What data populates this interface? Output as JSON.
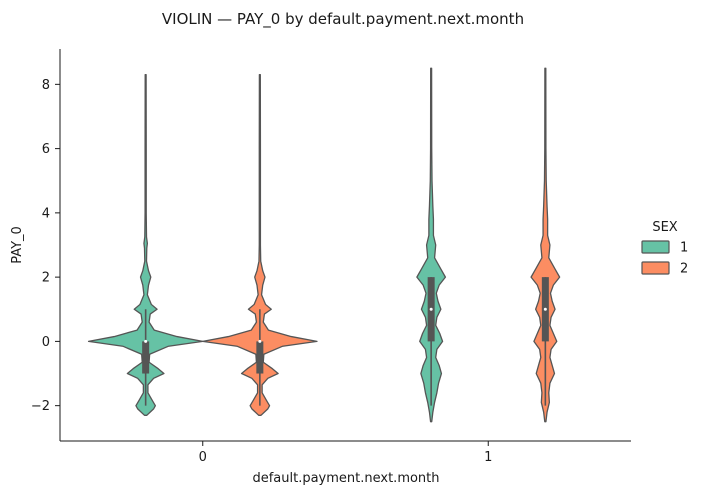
{
  "chart_data": {
    "type": "violin",
    "title": "VIOLIN — PAY_0 by default.payment.next.month",
    "xlabel": "default.payment.next.month",
    "ylabel": "PAY_0",
    "categories": [
      "0",
      "1"
    ],
    "ylim": [
      -3.1,
      9.1
    ],
    "yticks": [
      -2,
      0,
      2,
      4,
      6,
      8
    ],
    "ytick_labels": [
      "−2",
      "0",
      "2",
      "4",
      "6",
      "8"
    ],
    "grid": false,
    "legend": {
      "title": "SEX",
      "placement": "right",
      "entries": [
        {
          "label": "1",
          "color": "#66c2a5"
        },
        {
          "label": "2",
          "color": "#fc8d62"
        }
      ]
    },
    "series": [
      {
        "name": "1",
        "color": "#66c2a5",
        "violins": [
          {
            "category": "0",
            "ymin": -2.3,
            "ymax": 8.3,
            "q1": -1,
            "median": 0,
            "q3": 0,
            "whisker_low": -2,
            "whisker_high": 1,
            "density": [
              [
                -2.3,
                0.02
              ],
              [
                -2.1,
                0.14
              ],
              [
                -2.0,
                0.17
              ],
              [
                -1.85,
                0.12
              ],
              [
                -1.6,
                0.04
              ],
              [
                -1.35,
                0.04
              ],
              [
                -1.15,
                0.14
              ],
              [
                -1.0,
                0.32
              ],
              [
                -0.85,
                0.22
              ],
              [
                -0.65,
                0.06
              ],
              [
                -0.4,
                0.07
              ],
              [
                -0.15,
                0.4
              ],
              [
                0,
                1.0
              ],
              [
                0.15,
                0.55
              ],
              [
                0.35,
                0.15
              ],
              [
                0.6,
                0.06
              ],
              [
                0.85,
                0.08
              ],
              [
                1.0,
                0.2
              ],
              [
                1.15,
                0.1
              ],
              [
                1.45,
                0.03
              ],
              [
                1.75,
                0.05
              ],
              [
                2.0,
                0.09
              ],
              [
                2.2,
                0.05
              ],
              [
                2.5,
                0.015
              ],
              [
                2.9,
                0.02
              ],
              [
                3.05,
                0.03
              ],
              [
                3.25,
                0.015
              ],
              [
                4,
                0.01
              ],
              [
                6,
                0.01
              ],
              [
                8.3,
                0.008
              ]
            ]
          },
          {
            "category": "1",
            "ymin": -2.5,
            "ymax": 8.5,
            "q1": 0,
            "median": 1,
            "q3": 2,
            "whisker_low": -2,
            "whisker_high": 2,
            "density": [
              [
                -2.5,
                0.01
              ],
              [
                -2.2,
                0.03
              ],
              [
                -1.9,
                0.06
              ],
              [
                -1.6,
                0.1
              ],
              [
                -1.3,
                0.13
              ],
              [
                -1.0,
                0.18
              ],
              [
                -0.75,
                0.14
              ],
              [
                -0.5,
                0.08
              ],
              [
                -0.25,
                0.1
              ],
              [
                0,
                0.2
              ],
              [
                0.25,
                0.15
              ],
              [
                0.5,
                0.08
              ],
              [
                0.75,
                0.1
              ],
              [
                1.0,
                0.17
              ],
              [
                1.25,
                0.12
              ],
              [
                1.5,
                0.09
              ],
              [
                1.75,
                0.14
              ],
              [
                2.0,
                0.25
              ],
              [
                2.25,
                0.17
              ],
              [
                2.6,
                0.06
              ],
              [
                3.0,
                0.08
              ],
              [
                3.3,
                0.04
              ],
              [
                3.8,
                0.04
              ],
              [
                4.2,
                0.03
              ],
              [
                5,
                0.015
              ],
              [
                6,
                0.01
              ],
              [
                8.5,
                0.008
              ]
            ]
          }
        ]
      },
      {
        "name": "2",
        "color": "#fc8d62",
        "violins": [
          {
            "category": "0",
            "ymin": -2.3,
            "ymax": 8.3,
            "q1": -1,
            "median": 0,
            "q3": 0,
            "whisker_low": -2,
            "whisker_high": 1,
            "density": [
              [
                -2.3,
                0.02
              ],
              [
                -2.1,
                0.14
              ],
              [
                -2.0,
                0.17
              ],
              [
                -1.85,
                0.12
              ],
              [
                -1.6,
                0.04
              ],
              [
                -1.35,
                0.04
              ],
              [
                -1.15,
                0.14
              ],
              [
                -1.0,
                0.32
              ],
              [
                -0.85,
                0.22
              ],
              [
                -0.65,
                0.06
              ],
              [
                -0.4,
                0.07
              ],
              [
                -0.15,
                0.4
              ],
              [
                0,
                1.0
              ],
              [
                0.15,
                0.55
              ],
              [
                0.35,
                0.15
              ],
              [
                0.6,
                0.06
              ],
              [
                0.85,
                0.08
              ],
              [
                1.0,
                0.2
              ],
              [
                1.15,
                0.1
              ],
              [
                1.45,
                0.03
              ],
              [
                1.75,
                0.05
              ],
              [
                2.0,
                0.09
              ],
              [
                2.2,
                0.05
              ],
              [
                2.5,
                0.015
              ],
              [
                3,
                0.01
              ],
              [
                4,
                0.01
              ],
              [
                6,
                0.01
              ],
              [
                8.3,
                0.008
              ]
            ]
          },
          {
            "category": "1",
            "ymin": -2.5,
            "ymax": 8.5,
            "q1": 0,
            "median": 1,
            "q3": 2,
            "whisker_low": -2,
            "whisker_high": 2,
            "density": [
              [
                -2.5,
                0.01
              ],
              [
                -2.2,
                0.03
              ],
              [
                -1.9,
                0.07
              ],
              [
                -1.6,
                0.06
              ],
              [
                -1.3,
                0.08
              ],
              [
                -1.0,
                0.16
              ],
              [
                -0.75,
                0.12
              ],
              [
                -0.5,
                0.08
              ],
              [
                -0.25,
                0.1
              ],
              [
                0,
                0.2
              ],
              [
                0.25,
                0.14
              ],
              [
                0.5,
                0.08
              ],
              [
                0.75,
                0.1
              ],
              [
                1.0,
                0.17
              ],
              [
                1.25,
                0.12
              ],
              [
                1.5,
                0.09
              ],
              [
                1.75,
                0.14
              ],
              [
                2.0,
                0.25
              ],
              [
                2.25,
                0.17
              ],
              [
                2.6,
                0.06
              ],
              [
                3.0,
                0.08
              ],
              [
                3.3,
                0.04
              ],
              [
                3.8,
                0.04
              ],
              [
                4.2,
                0.03
              ],
              [
                5,
                0.015
              ],
              [
                6,
                0.01
              ],
              [
                8.5,
                0.008
              ]
            ]
          }
        ]
      }
    ]
  }
}
